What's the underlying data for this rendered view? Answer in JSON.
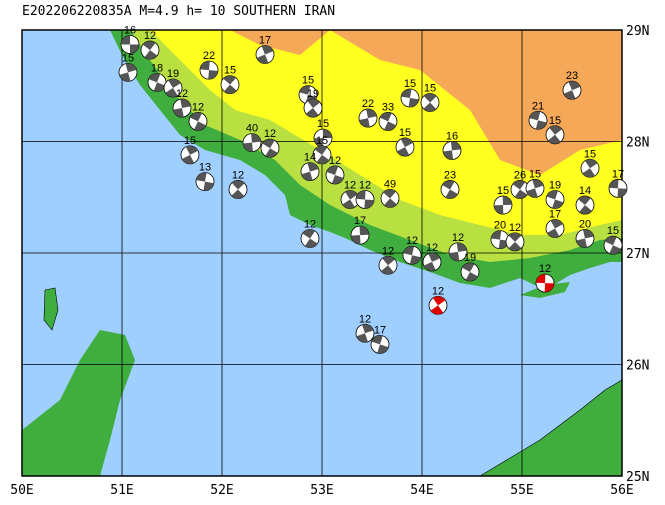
{
  "map": {
    "title": "E202206220835A M=4.9 h= 10 SOUTHERN IRAN",
    "xlim": [
      50,
      56
    ],
    "ylim": [
      25,
      29
    ],
    "xticks": [
      {
        "value": 50,
        "label": "50E"
      },
      {
        "value": 51,
        "label": "51E"
      },
      {
        "value": 52,
        "label": "52E"
      },
      {
        "value": 53,
        "label": "53E"
      },
      {
        "value": 54,
        "label": "54E"
      },
      {
        "value": 55,
        "label": "55E"
      },
      {
        "value": 56,
        "label": "56E"
      }
    ],
    "yticks": [
      {
        "value": 25,
        "label": "25N"
      },
      {
        "value": 26,
        "label": "26N"
      },
      {
        "value": 27,
        "label": "27N"
      },
      {
        "value": 28,
        "label": "28N"
      },
      {
        "value": 29,
        "label": "29N"
      }
    ],
    "grid": true,
    "events": [
      {
        "lon": 51.08,
        "lat": 28.87,
        "label": "16"
      },
      {
        "lon": 51.28,
        "lat": 28.82,
        "label": "12"
      },
      {
        "lon": 51.06,
        "lat": 28.62,
        "label": "15"
      },
      {
        "lon": 51.35,
        "lat": 28.53,
        "label": "18"
      },
      {
        "lon": 51.51,
        "lat": 28.48,
        "label": "19"
      },
      {
        "lon": 51.87,
        "lat": 28.64,
        "label": "22"
      },
      {
        "lon": 52.08,
        "lat": 28.51,
        "label": "15"
      },
      {
        "lon": 51.6,
        "lat": 28.3,
        "label": "12"
      },
      {
        "lon": 51.76,
        "lat": 28.18,
        "label": "12"
      },
      {
        "lon": 51.68,
        "lat": 27.88,
        "label": "15"
      },
      {
        "lon": 51.83,
        "lat": 27.64,
        "label": "13"
      },
      {
        "lon": 52.16,
        "lat": 27.57,
        "label": "12"
      },
      {
        "lon": 52.3,
        "lat": 27.99,
        "label": "40"
      },
      {
        "lon": 52.48,
        "lat": 27.94,
        "label": "12"
      },
      {
        "lon": 52.43,
        "lat": 28.78,
        "label": "17"
      },
      {
        "lon": 52.86,
        "lat": 28.42,
        "label": "15"
      },
      {
        "lon": 52.91,
        "lat": 28.3,
        "label": "19"
      },
      {
        "lon": 53.01,
        "lat": 28.03,
        "label": "15"
      },
      {
        "lon": 53.0,
        "lat": 27.88,
        "label": "15"
      },
      {
        "lon": 52.88,
        "lat": 27.73,
        "label": "14"
      },
      {
        "lon": 53.13,
        "lat": 27.7,
        "label": "12"
      },
      {
        "lon": 53.28,
        "lat": 27.48,
        "label": "12"
      },
      {
        "lon": 53.43,
        "lat": 27.48,
        "label": "12"
      },
      {
        "lon": 53.68,
        "lat": 27.49,
        "label": "49"
      },
      {
        "lon": 53.46,
        "lat": 28.21,
        "label": "22"
      },
      {
        "lon": 53.66,
        "lat": 28.18,
        "label": "33"
      },
      {
        "lon": 53.83,
        "lat": 27.95,
        "label": "15"
      },
      {
        "lon": 53.88,
        "lat": 28.39,
        "label": "15"
      },
      {
        "lon": 54.08,
        "lat": 28.35,
        "label": "15"
      },
      {
        "lon": 54.3,
        "lat": 27.92,
        "label": "16"
      },
      {
        "lon": 54.28,
        "lat": 27.57,
        "label": "23"
      },
      {
        "lon": 55.5,
        "lat": 28.46,
        "label": "23"
      },
      {
        "lon": 55.16,
        "lat": 28.19,
        "label": "21"
      },
      {
        "lon": 55.33,
        "lat": 28.06,
        "label": "15"
      },
      {
        "lon": 54.81,
        "lat": 27.43,
        "label": "15"
      },
      {
        "lon": 54.98,
        "lat": 27.57,
        "label": "26"
      },
      {
        "lon": 55.13,
        "lat": 27.58,
        "label": "15"
      },
      {
        "lon": 55.33,
        "lat": 27.48,
        "label": "19"
      },
      {
        "lon": 55.68,
        "lat": 27.76,
        "label": "15"
      },
      {
        "lon": 55.96,
        "lat": 27.58,
        "label": "17"
      },
      {
        "lon": 55.63,
        "lat": 27.43,
        "label": "14"
      },
      {
        "lon": 55.63,
        "lat": 27.13,
        "label": "20"
      },
      {
        "lon": 55.91,
        "lat": 27.07,
        "label": "15"
      },
      {
        "lon": 55.33,
        "lat": 27.22,
        "label": "17"
      },
      {
        "lon": 54.78,
        "lat": 27.12,
        "label": "20"
      },
      {
        "lon": 54.93,
        "lat": 27.1,
        "label": "12"
      },
      {
        "lon": 54.36,
        "lat": 27.01,
        "label": "12"
      },
      {
        "lon": 54.48,
        "lat": 26.83,
        "label": "19"
      },
      {
        "lon": 54.1,
        "lat": 26.92,
        "label": "12"
      },
      {
        "lon": 53.9,
        "lat": 26.98,
        "label": "12"
      },
      {
        "lon": 53.66,
        "lat": 26.89,
        "label": "12"
      },
      {
        "lon": 53.38,
        "lat": 27.16,
        "label": "17"
      },
      {
        "lon": 52.88,
        "lat": 27.13,
        "label": "12"
      },
      {
        "lon": 53.43,
        "lat": 26.28,
        "label": "12"
      },
      {
        "lon": 53.58,
        "lat": 26.18,
        "label": "17"
      },
      {
        "lon": 54.16,
        "lat": 26.53,
        "label": "12",
        "color": "#e00000"
      },
      {
        "lon": 55.23,
        "lat": 26.73,
        "label": "12",
        "color": "#e00000"
      }
    ]
  }
}
